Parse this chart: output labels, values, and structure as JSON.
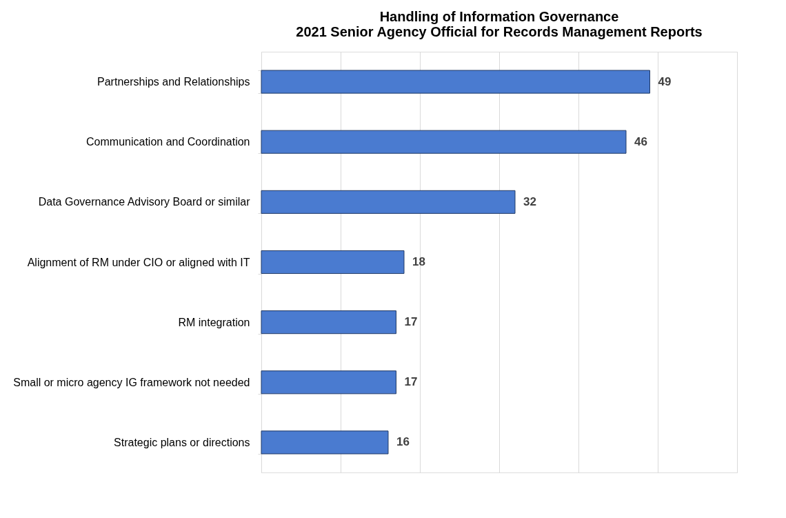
{
  "chart_data": {
    "type": "bar",
    "orientation": "horizontal",
    "title": "Handling of Information Governance\n2021 Senior Agency Official for Records Management Reports",
    "categories": [
      "Partnerships and Relationships",
      "Communication and Coordination",
      "Data Governance Advisory Board or similar",
      "Alignment of RM under CIO or aligned with IT",
      "RM integration",
      "Small or micro agency IG framework not needed",
      "Strategic plans or directions"
    ],
    "values": [
      49,
      46,
      32,
      18,
      17,
      17,
      16
    ],
    "color": "#4a7bd0",
    "xlim": [
      0,
      60
    ],
    "xticks": [
      {
        "value": 0,
        "label": null
      },
      {
        "value": 10,
        "label": null
      },
      {
        "value": 20,
        "label": null
      },
      {
        "value": 30,
        "label": null
      },
      {
        "value": 40,
        "label": null
      },
      {
        "value": 50,
        "label": null
      },
      {
        "value": 60,
        "label": null
      }
    ],
    "tick_labels": "y",
    "grid": "x",
    "data_labels": true
  }
}
